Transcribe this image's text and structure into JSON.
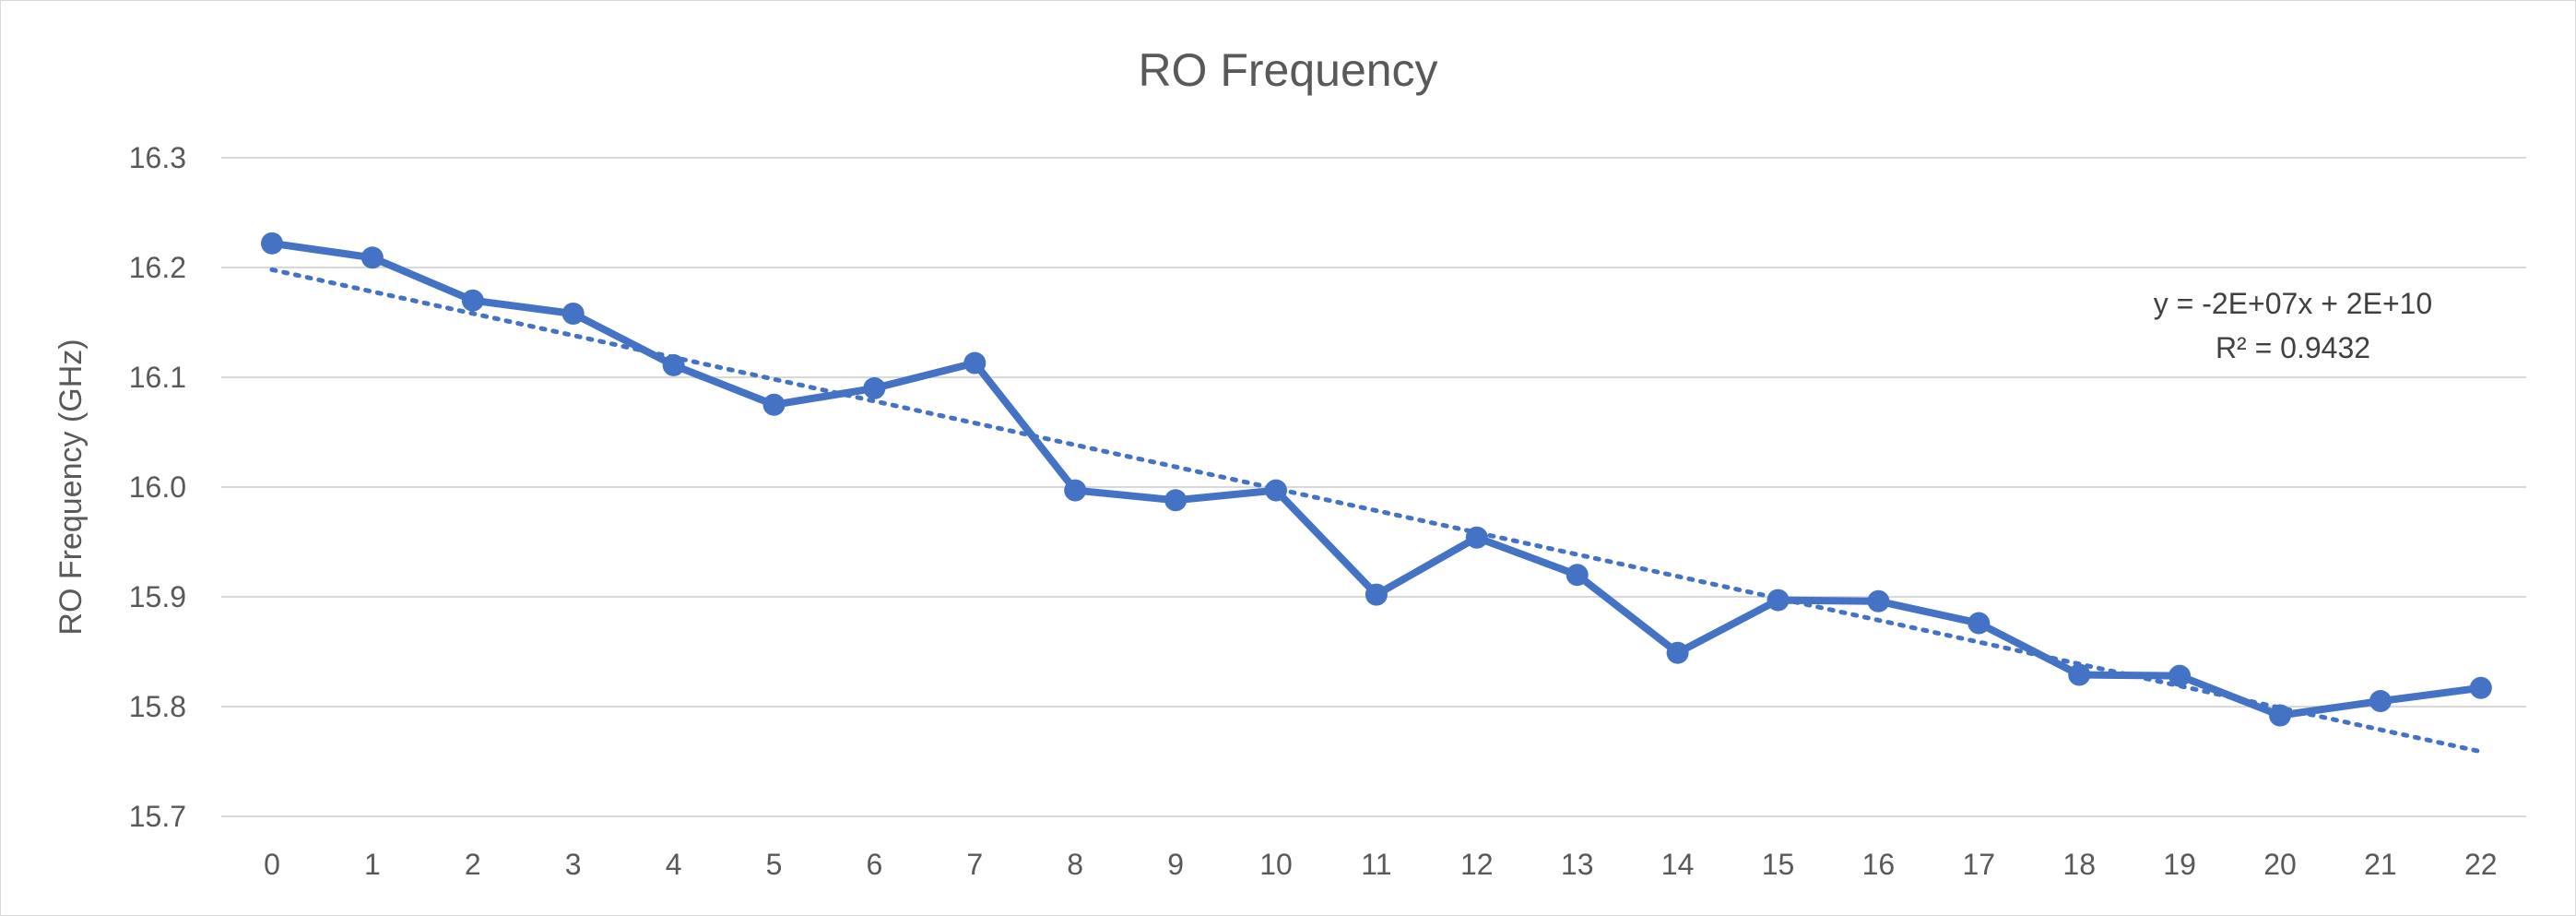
{
  "chart_data": {
    "type": "line",
    "title": "RO Frequency",
    "xlabel": "",
    "ylabel": "RO Frequency (GHz)",
    "x": [
      0,
      1,
      2,
      3,
      4,
      5,
      6,
      7,
      8,
      9,
      10,
      11,
      12,
      13,
      14,
      15,
      16,
      17,
      18,
      19,
      20,
      21,
      22
    ],
    "x_tick_labels": [
      "0",
      "1",
      "2",
      "3",
      "4",
      "5",
      "6",
      "7",
      "8",
      "9",
      "10",
      "11",
      "12",
      "13",
      "14",
      "15",
      "16",
      "17",
      "18",
      "19",
      "20",
      "21",
      "22"
    ],
    "ylim": [
      15.7,
      16.3
    ],
    "y_ticks": [
      "15.7",
      "15.8",
      "15.9",
      "16.0",
      "16.1",
      "16.2",
      "16.3"
    ],
    "grid": "horizontal",
    "series": [
      {
        "values": [
          16.222,
          16.209,
          16.17,
          16.158,
          16.111,
          16.075,
          16.09,
          16.113,
          15.997,
          15.988,
          15.997,
          15.902,
          15.954,
          15.92,
          15.849,
          15.897,
          15.896,
          15.876,
          15.829,
          15.828,
          15.792,
          15.805,
          15.817
        ],
        "color": "#4472c4",
        "marker": "circle"
      }
    ],
    "trendline": {
      "type": "linear",
      "style": "dotted",
      "color": "#4472c4",
      "start": [
        0,
        16.198
      ],
      "end": [
        22,
        15.759
      ],
      "equation": "y = -2E+07x + 2E+10",
      "r_squared": "R² = 0.9432"
    }
  }
}
